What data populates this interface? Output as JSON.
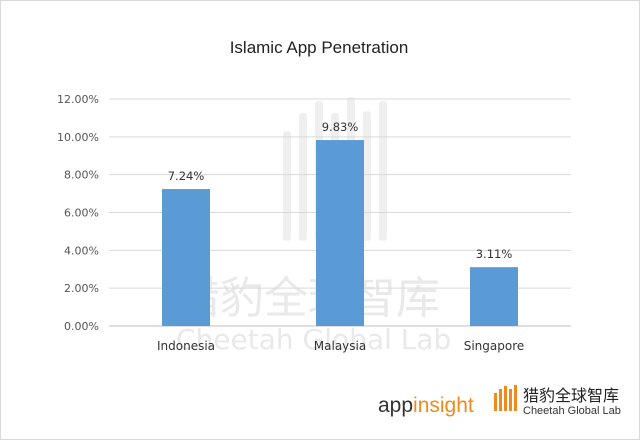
{
  "chart_data": {
    "type": "bar",
    "title": "Islamic App Penetration",
    "categories": [
      "Indonesia",
      "Malaysia",
      "Singapore"
    ],
    "values": [
      7.24,
      9.83,
      3.11
    ],
    "data_labels": [
      "7.24%",
      "9.83%",
      "3.11%"
    ],
    "yticks": [
      0,
      2,
      4,
      6,
      8,
      10,
      12
    ],
    "ytick_labels": [
      "0.00%",
      "2.00%",
      "4.00%",
      "6.00%",
      "8.00%",
      "10.00%",
      "12.00%"
    ],
    "ylim": [
      0,
      12
    ],
    "xlabel": "",
    "ylabel": "",
    "grid": true,
    "bar_color": "#5b9bd5"
  },
  "watermark": {
    "text_cn": "猎豹全球智库",
    "text_en": "Cheetah Global Lab"
  },
  "logos": {
    "appinsight_app": "app",
    "appinsight_insight": "insight",
    "cheetah_cn": "猎豹全球智库",
    "cheetah_en": "Cheetah Global Lab",
    "accent_color": "#f08a1c"
  }
}
